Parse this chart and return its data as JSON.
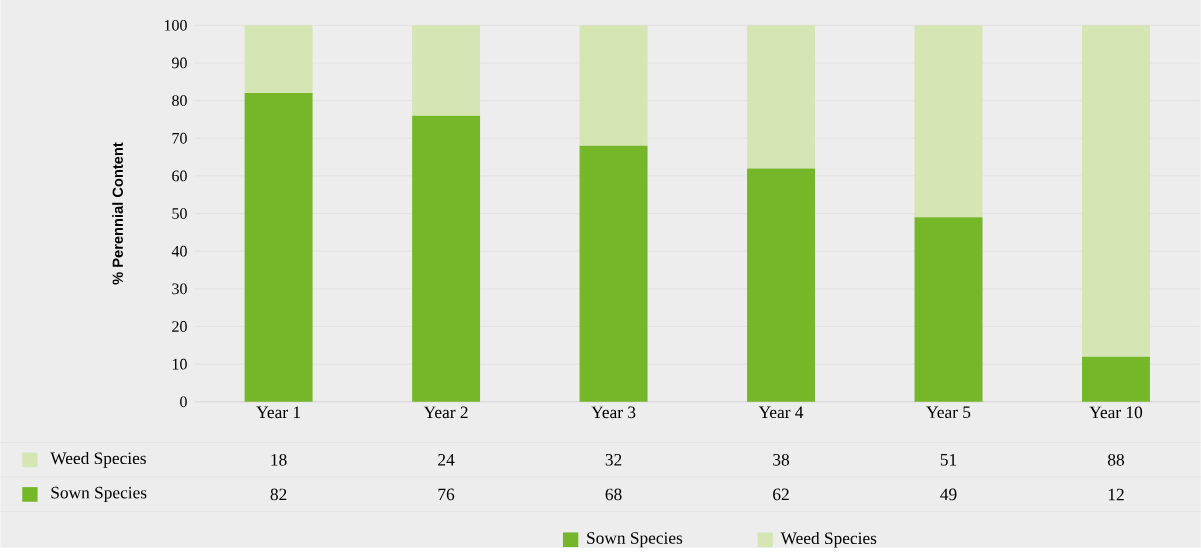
{
  "chart_data": {
    "type": "bar",
    "stacked": true,
    "ylabel": "% Perennial Content",
    "categories": [
      "Year 1",
      "Year 2",
      "Year 3",
      "Year 4",
      "Year 5",
      "Year 10"
    ],
    "series": [
      {
        "name": "Sown Species",
        "color": "#76b72a",
        "values": [
          82,
          76,
          68,
          62,
          49,
          12
        ]
      },
      {
        "name": "Weed Species",
        "color": "#d5e5b3",
        "values": [
          18,
          24,
          32,
          38,
          51,
          88
        ]
      }
    ],
    "ylim": [
      0,
      100
    ],
    "yticks": [
      0,
      10,
      20,
      30,
      40,
      50,
      60,
      70,
      80,
      90,
      100
    ],
    "grid": "y",
    "legend": "bottom",
    "data_labels": true
  }
}
